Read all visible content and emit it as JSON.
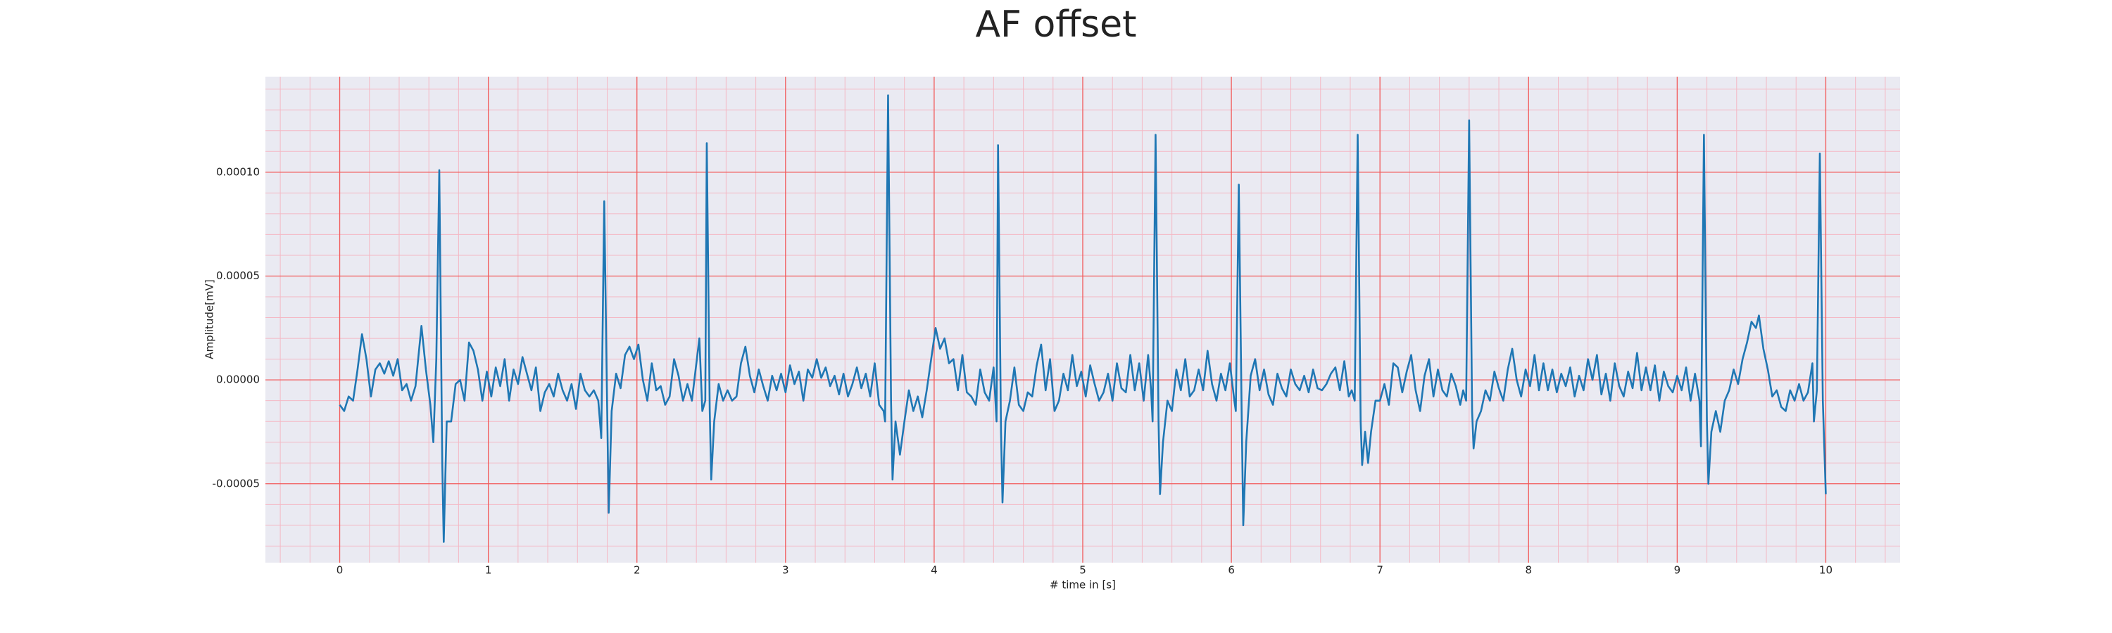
{
  "chart_data": {
    "type": "line",
    "title": "AF offset",
    "xlabel": "# time in [s]",
    "ylabel": "Amplitude[mV]",
    "color": "#1f77b4",
    "grid": true,
    "background": "#eaeaf2",
    "grid_color": "#f25a5a",
    "minor_grid_color": "#f4b8c4",
    "xlim": [
      -0.5,
      10.5
    ],
    "ylim": [
      -8.8e-05,
      0.000146
    ],
    "xticks": [
      0,
      1,
      2,
      3,
      4,
      5,
      6,
      7,
      8,
      9,
      10
    ],
    "yticks": [
      {
        "value": -5e-05,
        "label": "-0.00005"
      },
      {
        "value": 0,
        "label": "0.00000"
      },
      {
        "value": 5e-05,
        "label": "0.00005"
      },
      {
        "value": 0.0001,
        "label": "0.00010"
      }
    ],
    "xminorticks": [
      -0.4,
      -0.2,
      0.2,
      0.4,
      0.6,
      0.8,
      1.2,
      1.4,
      1.6,
      1.8,
      2.2,
      2.4,
      2.6,
      2.8,
      3.2,
      3.4,
      3.6,
      3.8,
      4.2,
      4.4,
      4.6,
      4.8,
      5.2,
      5.4,
      5.6,
      5.8,
      6.2,
      6.4,
      6.6,
      6.8,
      7.2,
      7.4,
      7.6,
      7.8,
      8.2,
      8.4,
      8.6,
      8.8,
      9.2,
      9.4,
      9.6,
      9.8,
      10.2,
      10.4
    ],
    "yminorticks": [
      -8e-05,
      -7e-05,
      -6e-05,
      -4e-05,
      -3e-05,
      -2e-05,
      -1e-05,
      1e-05,
      2e-05,
      3e-05,
      4e-05,
      6e-05,
      7e-05,
      8e-05,
      9e-05,
      0.00011,
      0.00012,
      0.00013,
      0.00014
    ],
    "x": [
      0,
      0.03,
      0.06,
      0.09,
      0.12,
      0.15,
      0.18,
      0.21,
      0.24,
      0.27,
      0.3,
      0.33,
      0.36,
      0.39,
      0.42,
      0.45,
      0.48,
      0.51,
      0.55,
      0.58,
      0.61,
      0.63,
      0.65,
      0.67,
      0.69,
      0.7,
      0.72,
      0.75,
      0.78,
      0.81,
      0.84,
      0.87,
      0.9,
      0.93,
      0.96,
      0.99,
      1.02,
      1.05,
      1.08,
      1.11,
      1.14,
      1.17,
      1.2,
      1.23,
      1.26,
      1.29,
      1.32,
      1.35,
      1.38,
      1.41,
      1.44,
      1.47,
      1.5,
      1.53,
      1.56,
      1.59,
      1.62,
      1.65,
      1.68,
      1.71,
      1.74,
      1.76,
      1.78,
      1.8,
      1.81,
      1.83,
      1.86,
      1.89,
      1.92,
      1.95,
      1.98,
      2.01,
      2.04,
      2.07,
      2.1,
      2.13,
      2.16,
      2.19,
      2.22,
      2.25,
      2.28,
      2.31,
      2.34,
      2.37,
      2.4,
      2.42,
      2.44,
      2.46,
      2.47,
      2.49,
      2.5,
      2.52,
      2.55,
      2.58,
      2.61,
      2.64,
      2.67,
      2.7,
      2.73,
      2.76,
      2.79,
      2.82,
      2.85,
      2.88,
      2.91,
      2.94,
      2.97,
      3,
      3.03,
      3.06,
      3.09,
      3.12,
      3.15,
      3.18,
      3.21,
      3.24,
      3.27,
      3.3,
      3.33,
      3.36,
      3.39,
      3.42,
      3.45,
      3.48,
      3.51,
      3.54,
      3.57,
      3.6,
      3.63,
      3.66,
      3.67,
      3.69,
      3.71,
      3.72,
      3.74,
      3.77,
      3.8,
      3.83,
      3.86,
      3.89,
      3.92,
      3.95,
      3.98,
      4.01,
      4.04,
      4.07,
      4.1,
      4.13,
      4.16,
      4.19,
      4.22,
      4.25,
      4.28,
      4.31,
      4.34,
      4.37,
      4.4,
      4.42,
      4.43,
      4.45,
      4.46,
      4.48,
      4.51,
      4.54,
      4.57,
      4.6,
      4.63,
      4.66,
      4.69,
      4.72,
      4.75,
      4.78,
      4.81,
      4.84,
      4.87,
      4.9,
      4.93,
      4.96,
      4.99,
      5.02,
      5.05,
      5.08,
      5.11,
      5.14,
      5.17,
      5.2,
      5.23,
      5.26,
      5.29,
      5.32,
      5.35,
      5.38,
      5.41,
      5.44,
      5.46,
      5.47,
      5.49,
      5.51,
      5.52,
      5.54,
      5.57,
      5.6,
      5.63,
      5.66,
      5.69,
      5.72,
      5.75,
      5.78,
      5.81,
      5.84,
      5.87,
      5.9,
      5.93,
      5.96,
      5.99,
      6.02,
      6.03,
      6.05,
      6.07,
      6.08,
      6.1,
      6.13,
      6.16,
      6.19,
      6.22,
      6.25,
      6.28,
      6.31,
      6.34,
      6.37,
      6.4,
      6.43,
      6.46,
      6.49,
      6.52,
      6.55,
      6.58,
      6.61,
      6.64,
      6.67,
      6.7,
      6.73,
      6.76,
      6.79,
      6.81,
      6.83,
      6.85,
      6.87,
      6.88,
      6.9,
      6.92,
      6.94,
      6.97,
      7,
      7.03,
      7.06,
      7.09,
      7.12,
      7.15,
      7.18,
      7.21,
      7.24,
      7.27,
      7.3,
      7.33,
      7.36,
      7.39,
      7.42,
      7.45,
      7.48,
      7.51,
      7.54,
      7.56,
      7.58,
      7.6,
      7.62,
      7.63,
      7.65,
      7.68,
      7.71,
      7.74,
      7.77,
      7.8,
      7.83,
      7.86,
      7.89,
      7.92,
      7.95,
      7.98,
      8.01,
      8.04,
      8.07,
      8.1,
      8.13,
      8.16,
      8.19,
      8.22,
      8.25,
      8.28,
      8.31,
      8.34,
      8.37,
      8.4,
      8.43,
      8.46,
      8.49,
      8.52,
      8.55,
      8.58,
      8.61,
      8.64,
      8.67,
      8.7,
      8.73,
      8.76,
      8.79,
      8.82,
      8.85,
      8.88,
      8.91,
      8.94,
      8.97,
      9,
      9.03,
      9.06,
      9.09,
      9.12,
      9.15,
      9.16,
      9.18,
      9.2,
      9.21,
      9.23,
      9.26,
      9.29,
      9.32,
      9.35,
      9.38,
      9.41,
      9.44,
      9.47,
      9.5,
      9.53,
      9.55,
      9.58,
      9.61,
      9.64,
      9.67,
      9.7,
      9.73,
      9.76,
      9.79,
      9.82,
      9.85,
      9.88,
      9.91,
      9.92,
      9.94,
      9.96,
      9.98,
      10
    ],
    "values": [
      -1.2e-05,
      -1.5e-05,
      -8e-06,
      -1e-05,
      5e-06,
      2.2e-05,
      1e-05,
      -8e-06,
      5e-06,
      8e-06,
      3e-06,
      9e-06,
      2e-06,
      1e-05,
      -5e-06,
      -2e-06,
      -1e-05,
      -3e-06,
      2.6e-05,
      5e-06,
      -1.2e-05,
      -3e-05,
      1e-05,
      0.000101,
      -4e-05,
      -7.8e-05,
      -2e-05,
      -2e-05,
      -2e-06,
      0,
      -1e-05,
      1.8e-05,
      1.4e-05,
      5e-06,
      -1e-05,
      4e-06,
      -8e-06,
      6e-06,
      -3e-06,
      1e-05,
      -1e-05,
      5e-06,
      -2e-06,
      1.1e-05,
      3e-06,
      -5e-06,
      6e-06,
      -1.5e-05,
      -6e-06,
      -2e-06,
      -8e-06,
      3e-06,
      -5e-06,
      -1e-05,
      -2e-06,
      -1.4e-05,
      3e-06,
      -5e-06,
      -8e-06,
      -5e-06,
      -1e-05,
      -2.8e-05,
      8.6e-05,
      -1.5e-05,
      -6.4e-05,
      -1.5e-05,
      3e-06,
      -4e-06,
      1.2e-05,
      1.6e-05,
      1e-05,
      1.7e-05,
      0,
      -1e-05,
      8e-06,
      -5e-06,
      -3e-06,
      -1.2e-05,
      -8e-06,
      1e-05,
      2e-06,
      -1e-05,
      -2e-06,
      -1e-05,
      8e-06,
      2e-05,
      -1.5e-05,
      -1e-05,
      0.000114,
      -1.5e-05,
      -4.8e-05,
      -2e-05,
      -2e-06,
      -1e-05,
      -5e-06,
      -1e-05,
      -8e-06,
      8e-06,
      1.6e-05,
      2e-06,
      -6e-06,
      5e-06,
      -3e-06,
      -1e-05,
      2e-06,
      -5e-06,
      3e-06,
      -6e-06,
      7e-06,
      -2e-06,
      4e-06,
      -1e-05,
      5e-06,
      1e-06,
      1e-05,
      1e-06,
      6e-06,
      -3e-06,
      2e-06,
      -7e-06,
      3e-06,
      -8e-06,
      -2e-06,
      6e-06,
      -4e-06,
      3e-06,
      -8e-06,
      8e-06,
      -1.2e-05,
      -1.5e-05,
      -2e-05,
      0.000137,
      -1e-05,
      -4.8e-05,
      -2e-05,
      -3.6e-05,
      -2e-05,
      -5e-06,
      -1.5e-05,
      -8e-06,
      -1.8e-05,
      -5e-06,
      1e-05,
      2.5e-05,
      1.5e-05,
      2e-05,
      8e-06,
      1e-05,
      -5e-06,
      1.2e-05,
      -6e-06,
      -8e-06,
      -1.2e-05,
      5e-06,
      -6e-06,
      -1e-05,
      6e-06,
      -2e-05,
      0.000113,
      -2.5e-05,
      -5.9e-05,
      -2e-05,
      -1e-05,
      6e-06,
      -1.2e-05,
      -1.5e-05,
      -6e-06,
      -8e-06,
      7e-06,
      1.7e-05,
      -5e-06,
      1e-05,
      -1.5e-05,
      -1e-05,
      3e-06,
      -5e-06,
      1.2e-05,
      -3e-06,
      4e-06,
      -8e-06,
      7e-06,
      -2e-06,
      -1e-05,
      -6e-06,
      3e-06,
      -1e-05,
      8e-06,
      -4e-06,
      -6e-06,
      1.2e-05,
      -5e-06,
      8e-06,
      -1e-05,
      1.2e-05,
      -5e-06,
      -2e-05,
      0.000118,
      -2e-05,
      -5.5e-05,
      -3e-05,
      -1e-05,
      -1.5e-05,
      5e-06,
      -5e-06,
      1e-05,
      -8e-06,
      -5e-06,
      5e-06,
      -5e-06,
      1.4e-05,
      -2e-06,
      -1e-05,
      3e-06,
      -5e-06,
      8e-06,
      -1e-05,
      -1.5e-05,
      9.4e-05,
      -2e-05,
      -7e-05,
      -3e-05,
      2e-06,
      1e-05,
      -5e-06,
      5e-06,
      -7e-06,
      -1.2e-05,
      3e-06,
      -4e-06,
      -8e-06,
      5e-06,
      -2e-06,
      -5e-06,
      2e-06,
      -6e-06,
      5e-06,
      -4e-06,
      -5e-06,
      -2e-06,
      3e-06,
      6e-06,
      -5e-06,
      9e-06,
      -8e-06,
      -5e-06,
      -1e-05,
      0.000118,
      -2e-05,
      -4.1e-05,
      -2.5e-05,
      -4e-05,
      -2.5e-05,
      -1e-05,
      -1e-05,
      -2e-06,
      -1.2e-05,
      8e-06,
      6e-06,
      -6e-06,
      4e-06,
      1.2e-05,
      -5e-06,
      -1.5e-05,
      2e-06,
      1e-05,
      -8e-06,
      5e-06,
      -5e-06,
      -8e-06,
      3e-06,
      -3e-06,
      -1.2e-05,
      -5e-06,
      -1e-05,
      0.000125,
      -1.5e-05,
      -3.3e-05,
      -2e-05,
      -1.5e-05,
      -5e-06,
      -1e-05,
      4e-06,
      -4e-06,
      -1e-05,
      5e-06,
      1.5e-05,
      0,
      -8e-06,
      5e-06,
      -3e-06,
      1.2e-05,
      -5e-06,
      8e-06,
      -5e-06,
      5e-06,
      -6e-06,
      3e-06,
      -3e-06,
      6e-06,
      -8e-06,
      2e-06,
      -5e-06,
      1e-05,
      0,
      1.2e-05,
      -7e-06,
      3e-06,
      -1e-05,
      8e-06,
      -3e-06,
      -8e-06,
      4e-06,
      -4e-06,
      1.3e-05,
      -5e-06,
      6e-06,
      -5e-06,
      7e-06,
      -1e-05,
      4e-06,
      -3e-06,
      -6e-06,
      2e-06,
      -5e-06,
      6e-06,
      -1e-05,
      3e-06,
      -1e-05,
      -3.2e-05,
      0.000118,
      -2e-05,
      -5e-05,
      -2.5e-05,
      -1.5e-05,
      -2.5e-05,
      -1e-05,
      -5e-06,
      5e-06,
      -2e-06,
      1e-05,
      1.8e-05,
      2.8e-05,
      2.5e-05,
      3.1e-05,
      1.5e-05,
      5e-06,
      -8e-06,
      -5e-06,
      -1.3e-05,
      -1.5e-05,
      -5e-06,
      -1e-05,
      -2e-06,
      -1e-05,
      -6e-06,
      8e-06,
      -2e-05,
      -5e-06,
      0.000109,
      -1e-05,
      -5.5e-05
    ]
  }
}
